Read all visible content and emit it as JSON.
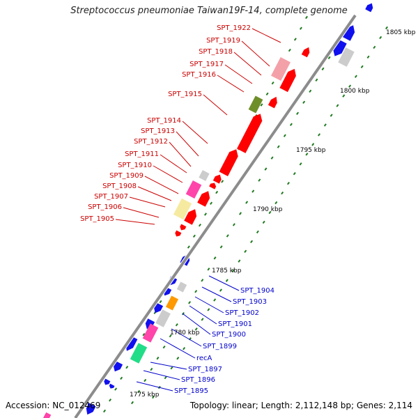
{
  "title": "Streptococcus pneumoniae Taiwan19F-14, complete genome",
  "footer": {
    "accession": "Accession: NC_012469",
    "summary": "Topology: linear; Length: 2,112,148 bp; Genes: 2,114"
  },
  "colors": {
    "backbone": "#8c8c8c",
    "tick": "#1f7a1f",
    "label_red": "#cc0000",
    "label_blue": "#0000cc",
    "gene_red": "#ff0000",
    "gene_blue": "#1010ee",
    "gene_pink": "#f4a0a8",
    "gene_grey": "#cccccc",
    "gene_olive": "#6e8e2a",
    "gene_magenta": "#ff44aa",
    "gene_khaki": "#f5eaa0",
    "gene_orange": "#ff9900",
    "gene_green": "#22dd88"
  },
  "chart_data": {
    "type": "genome-map",
    "ruler_labels": [
      "1805 kbp",
      "1800 kbp",
      "1795 kbp",
      "1790 kbp",
      "1785 kbp",
      "1780 kbp",
      "1775 kbp"
    ],
    "upper_labels": [
      "SPT_1922",
      "SPT_1919",
      "SPT_1918",
      "SPT_1917",
      "SPT_1916",
      "SPT_1915",
      "SPT_1914",
      "SPT_1913",
      "SPT_1912",
      "SPT_1911",
      "SPT_1910",
      "SPT_1909",
      "SPT_1908",
      "SPT_1907",
      "SPT_1906",
      "SPT_1905"
    ],
    "lower_labels": [
      "SPT_1904",
      "SPT_1903",
      "SPT_1902",
      "SPT_1901",
      "SPT_1900",
      "SPT_1899",
      "recA",
      "SPT_1897",
      "SPT_1896",
      "SPT_1895"
    ]
  }
}
